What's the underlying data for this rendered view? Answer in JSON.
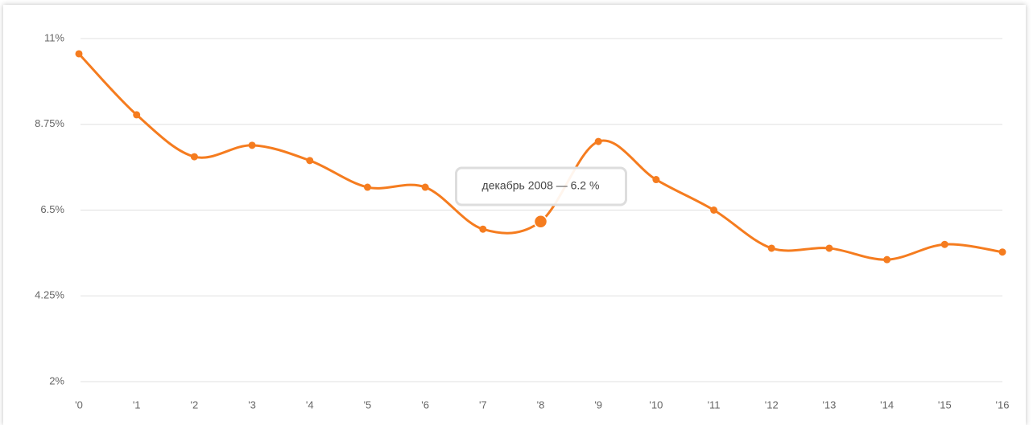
{
  "chart_data": {
    "type": "line",
    "categories": [
      "'0",
      "'1",
      "'2",
      "'3",
      "'4",
      "'5",
      "'6",
      "'7",
      "'8",
      "'9",
      "'10",
      "'11",
      "'12",
      "'13",
      "'14",
      "'15",
      "'16"
    ],
    "values": [
      10.6,
      9.0,
      7.9,
      8.2,
      7.8,
      7.1,
      7.1,
      6.0,
      6.2,
      8.3,
      7.3,
      6.5,
      5.5,
      5.5,
      5.2,
      5.6,
      5.4
    ],
    "color": "#f57c1f",
    "ylim": [
      2,
      11
    ],
    "yticks": [
      {
        "value": 2,
        "label": "2%"
      },
      {
        "value": 4.25,
        "label": "4.25%"
      },
      {
        "value": 6.5,
        "label": "6.5%"
      },
      {
        "value": 8.75,
        "label": "8.75%"
      },
      {
        "value": 11,
        "label": "11%"
      }
    ],
    "grid": true,
    "tooltip": "декабрь 2008 — 6.2 %"
  }
}
